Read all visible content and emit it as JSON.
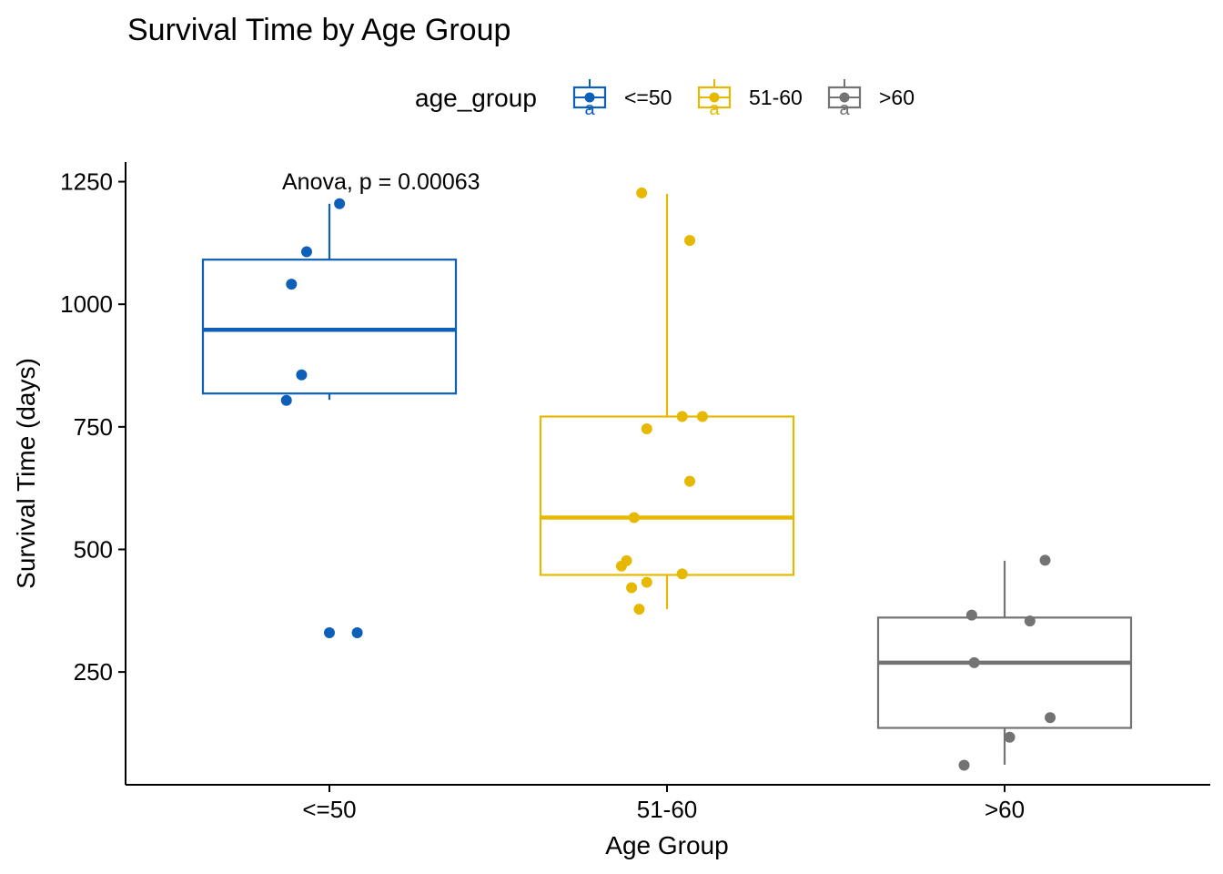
{
  "chart_data": {
    "type": "box",
    "title": "Survival Time by Age Group",
    "xlabel": "Age Group",
    "ylabel": "Survival Time (days)",
    "ylim": [
      20,
      1290
    ],
    "yticks": [
      250,
      500,
      750,
      1000,
      1250
    ],
    "grid": false,
    "legend": {
      "title": "age_group",
      "placement": "top",
      "glyph_letter": "a"
    },
    "annotation": "Anova, p = 0.00063",
    "categories": [
      "<=50",
      "51-60",
      ">60"
    ],
    "series": [
      {
        "name": "<=50",
        "color": "#0D5FB8",
        "box": {
          "min": 805,
          "q1": 818,
          "median": 948,
          "q3": 1091,
          "max": 1205
        },
        "points": [
          1205,
          1107,
          1041,
          856,
          804,
          330,
          330
        ],
        "jitter": [
          0.04,
          -0.09,
          -0.15,
          -0.11,
          -0.17,
          0.0,
          0.11
        ]
      },
      {
        "name": "51-60",
        "color": "#E7B800",
        "box": {
          "min": 378,
          "q1": 448,
          "median": 565,
          "q3": 771,
          "max": 1225
        },
        "points": [
          1227,
          1130,
          771,
          771,
          746,
          639,
          565,
          477,
          466,
          450,
          433,
          422,
          378
        ],
        "jitter": [
          -0.1,
          0.09,
          0.06,
          0.14,
          -0.08,
          0.09,
          -0.13,
          -0.16,
          -0.18,
          0.06,
          -0.08,
          -0.14,
          -0.11
        ]
      },
      {
        "name": ">60",
        "color": "#737373",
        "box": {
          "min": 61,
          "q1": 136,
          "median": 269,
          "q3": 361,
          "max": 477
        },
        "points": [
          478,
          366,
          354,
          269,
          157,
          117,
          60
        ],
        "jitter": [
          0.16,
          -0.13,
          0.1,
          -0.12,
          0.18,
          0.02,
          -0.16
        ]
      }
    ]
  }
}
